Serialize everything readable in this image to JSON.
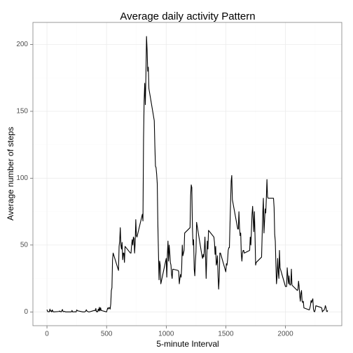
{
  "chart_data": {
    "type": "line",
    "title": "Average daily activity Pattern",
    "xlabel": "5-minute Interval",
    "ylabel": "Average number of steps",
    "xlim": [
      -117.75,
      2472.75
    ],
    "ylim": [
      -10.3,
      216.5
    ],
    "xticks": [
      0,
      500,
      1000,
      1500,
      2000
    ],
    "yticks": [
      0,
      50,
      100,
      150,
      200
    ],
    "x_minor_grid": [
      250,
      750,
      1250,
      1750,
      2250
    ],
    "y_minor_grid": [
      25,
      75,
      125,
      175
    ],
    "grid": true,
    "x": [
      0,
      5,
      10,
      15,
      20,
      25,
      30,
      35,
      40,
      45,
      50,
      55,
      100,
      105,
      110,
      115,
      120,
      125,
      130,
      135,
      140,
      145,
      150,
      155,
      200,
      205,
      210,
      215,
      220,
      225,
      230,
      235,
      240,
      245,
      250,
      255,
      300,
      305,
      310,
      315,
      320,
      325,
      330,
      335,
      340,
      345,
      350,
      355,
      400,
      405,
      410,
      415,
      420,
      425,
      430,
      435,
      440,
      445,
      450,
      455,
      500,
      505,
      510,
      515,
      520,
      525,
      530,
      535,
      540,
      545,
      550,
      555,
      600,
      605,
      610,
      615,
      620,
      625,
      630,
      635,
      640,
      645,
      650,
      655,
      700,
      705,
      710,
      715,
      720,
      725,
      730,
      735,
      740,
      745,
      750,
      755,
      800,
      805,
      810,
      815,
      820,
      825,
      830,
      835,
      840,
      845,
      850,
      855,
      900,
      905,
      910,
      915,
      920,
      925,
      930,
      935,
      940,
      945,
      950,
      955,
      1000,
      1005,
      1010,
      1015,
      1020,
      1025,
      1030,
      1035,
      1040,
      1045,
      1050,
      1055,
      1100,
      1105,
      1110,
      1115,
      1120,
      1125,
      1130,
      1135,
      1140,
      1145,
      1150,
      1155,
      1200,
      1205,
      1210,
      1215,
      1220,
      1225,
      1230,
      1235,
      1240,
      1245,
      1250,
      1255,
      1300,
      1305,
      1310,
      1315,
      1320,
      1325,
      1330,
      1335,
      1340,
      1345,
      1350,
      1355,
      1400,
      1405,
      1410,
      1415,
      1420,
      1425,
      1430,
      1435,
      1440,
      1445,
      1450,
      1455,
      1500,
      1505,
      1510,
      1515,
      1520,
      1525,
      1530,
      1535,
      1540,
      1545,
      1550,
      1555,
      1600,
      1605,
      1610,
      1615,
      1620,
      1625,
      1630,
      1635,
      1640,
      1645,
      1650,
      1655,
      1700,
      1705,
      1710,
      1715,
      1720,
      1725,
      1730,
      1735,
      1740,
      1745,
      1750,
      1755,
      1800,
      1805,
      1810,
      1815,
      1820,
      1825,
      1830,
      1835,
      1840,
      1845,
      1850,
      1855,
      1900,
      1905,
      1910,
      1915,
      1920,
      1925,
      1930,
      1935,
      1940,
      1945,
      1950,
      1955,
      2000,
      2005,
      2010,
      2015,
      2020,
      2025,
      2030,
      2035,
      2040,
      2045,
      2050,
      2055,
      2100,
      2105,
      2110,
      2115,
      2120,
      2125,
      2130,
      2135,
      2140,
      2145,
      2150,
      2155,
      2200,
      2205,
      2210,
      2215,
      2220,
      2225,
      2230,
      2235,
      2240,
      2245,
      2250,
      2255,
      2300,
      2305,
      2310,
      2315,
      2320,
      2325,
      2330,
      2335,
      2340,
      2345,
      2350,
      2355
    ],
    "series": [
      {
        "color": "#000000",
        "values": [
          1.7,
          0.3,
          0.1,
          0.2,
          0.1,
          2.1,
          0.5,
          0.9,
          0,
          1.5,
          0.4,
          0,
          0.3,
          0.7,
          0.2,
          0.3,
          0,
          1.1,
          1.8,
          0.2,
          0.2,
          0.4,
          0.3,
          0,
          0,
          0,
          1.1,
          0,
          0,
          0.1,
          0,
          0.2,
          0,
          0,
          1.5,
          0.9,
          0,
          0,
          0,
          0,
          0.2,
          0.6,
          1.6,
          0.6,
          0.5,
          0.1,
          0,
          0,
          1.2,
          0.9,
          2.6,
          0.1,
          0.3,
          0,
          2.1,
          0.7,
          3.5,
          0.8,
          3.1,
          1.1,
          0,
          1.6,
          3,
          2.2,
          3.3,
          3,
          2.1,
          6,
          16,
          18,
          39,
          44,
          31,
          49,
          53,
          63,
          50,
          47,
          52,
          39,
          44,
          44,
          37,
          49,
          44,
          44,
          50,
          54,
          50,
          56,
          55,
          44,
          52,
          69,
          57,
          56,
          73,
          68,
          129,
          158,
          171,
          155,
          177,
          206,
          196,
          180,
          183,
          167,
          143,
          124,
          109,
          108,
          103,
          96,
          66,
          45,
          24,
          38,
          35,
          21,
          40,
          26,
          42,
          53,
          38,
          50,
          44,
          37,
          35,
          28,
          25,
          32,
          31,
          30,
          21,
          25,
          28,
          26,
          33,
          50,
          42,
          44,
          46,
          59,
          63,
          87,
          95,
          93,
          63,
          50,
          54,
          32,
          27,
          38,
          45,
          67,
          42,
          40,
          43,
          41,
          46,
          56,
          43,
          25,
          40,
          53,
          47,
          61,
          56,
          52,
          43,
          49,
          35,
          37,
          42,
          27,
          17,
          26,
          44,
          44,
          30,
          36,
          35,
          39,
          46,
          48,
          48,
          65,
          82,
          98,
          102,
          84,
          62,
          62,
          75,
          63,
          57,
          59,
          43,
          38,
          44,
          46,
          46,
          44,
          46,
          56,
          50,
          61,
          73,
          79,
          69,
          60,
          75,
          57,
          35,
          37,
          41,
          58,
          74,
          85,
          59,
          68,
          77,
          74,
          85,
          99,
          86,
          85,
          85,
          78,
          58,
          53,
          36,
          21,
          27,
          40,
          30,
          25,
          46,
          33,
          19,
          19,
          19,
          33,
          27,
          21,
          27,
          21,
          20,
          21,
          32,
          20,
          16,
          17,
          23,
          19,
          12,
          8,
          14,
          16,
          8,
          7,
          8,
          3,
          1.5,
          3,
          4.8,
          8.5,
          7,
          8.7,
          9.8,
          2.2,
          0.3,
          0.1,
          1.6,
          4.6,
          3.3,
          2.8,
          0,
          0.8,
          1,
          1.6,
          2.6,
          4.7,
          3.3,
          0.6,
          0.2,
          1.1
        ]
      }
    ]
  }
}
